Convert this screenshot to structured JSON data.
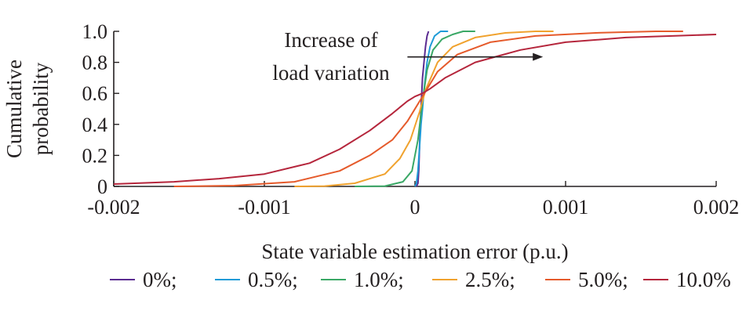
{
  "chart_data": {
    "type": "line",
    "title": "",
    "xlabel": "State variable estimation error (p.u.)",
    "ylabel_lines": [
      "Cumulative",
      "probability"
    ],
    "xlim": [
      -0.002,
      0.002
    ],
    "ylim": [
      0,
      1.0
    ],
    "x_ticks": [
      -0.002,
      -0.001,
      0,
      0.001,
      0.002
    ],
    "x_tick_labels": [
      "-0.002",
      "-0.001",
      "0",
      "0.001",
      "0.002"
    ],
    "y_ticks": [
      0,
      0.2,
      0.4,
      0.6,
      0.8,
      1.0
    ],
    "y_tick_labels": [
      "0",
      "0.2",
      "0.4",
      "0.6",
      "0.8",
      "1.0"
    ],
    "grid": false,
    "legend_position": "bottom",
    "annotation": {
      "lines": [
        "Increase of",
        "load variation"
      ],
      "arrow_from": [
        -5e-05,
        0.835
      ],
      "arrow_to": [
        0.00085,
        0.835
      ]
    },
    "series": [
      {
        "name": "0%",
        "legend_label": "0%;",
        "color": "#5b2c91",
        "points": [
          [
            1e-05,
            0
          ],
          [
            2e-05,
            0.02
          ],
          [
            2.5e-05,
            0.1
          ],
          [
            3e-05,
            0.25
          ],
          [
            3.5e-05,
            0.4
          ],
          [
            4e-05,
            0.5
          ],
          [
            4.5e-05,
            0.6
          ],
          [
            5e-05,
            0.7
          ],
          [
            6e-05,
            0.8
          ],
          [
            7e-05,
            0.9
          ],
          [
            8e-05,
            0.97
          ],
          [
            9e-05,
            1.0
          ]
        ]
      },
      {
        "name": "0.5%",
        "legend_label": "0.5%;",
        "color": "#1f9bd7",
        "points": [
          [
            0,
            0
          ],
          [
            1e-05,
            0.02
          ],
          [
            2e-05,
            0.1
          ],
          [
            3e-05,
            0.25
          ],
          [
            4e-05,
            0.4
          ],
          [
            5e-05,
            0.5
          ],
          [
            6e-05,
            0.62
          ],
          [
            8e-05,
            0.8
          ],
          [
            0.0001,
            0.9
          ],
          [
            0.00013,
            0.97
          ],
          [
            0.00017,
            1.0
          ],
          [
            0.00022,
            1.0
          ]
        ]
      },
      {
        "name": "1.0%",
        "legend_label": "1.0%;",
        "color": "#3aa866",
        "points": [
          [
            -0.0004,
            0
          ],
          [
            -0.0002,
            0.002
          ],
          [
            -8e-05,
            0.03
          ],
          [
            -2e-05,
            0.1
          ],
          [
            2e-05,
            0.3
          ],
          [
            5e-05,
            0.55
          ],
          [
            8e-05,
            0.75
          ],
          [
            0.00012,
            0.88
          ],
          [
            0.00018,
            0.95
          ],
          [
            0.00025,
            0.98
          ],
          [
            0.00032,
            1.0
          ],
          [
            0.0004,
            1.0
          ]
        ]
      },
      {
        "name": "2.5%",
        "legend_label": "2.5%;",
        "color": "#f0a22e",
        "points": [
          [
            -0.0008,
            0
          ],
          [
            -0.0006,
            0.002
          ],
          [
            -0.0004,
            0.02
          ],
          [
            -0.0002,
            0.08
          ],
          [
            -0.0001,
            0.18
          ],
          [
            -3e-05,
            0.3
          ],
          [
            3e-05,
            0.48
          ],
          [
            7e-05,
            0.62
          ],
          [
            0.00015,
            0.8
          ],
          [
            0.00025,
            0.9
          ],
          [
            0.0004,
            0.96
          ],
          [
            0.0006,
            0.99
          ],
          [
            0.0008,
            1.0
          ],
          [
            0.00092,
            1.0
          ]
        ]
      },
      {
        "name": "5.0%",
        "legend_label": "5.0%;",
        "color": "#e55a2b",
        "points": [
          [
            -0.0016,
            0
          ],
          [
            -0.0012,
            0.005
          ],
          [
            -0.0008,
            0.03
          ],
          [
            -0.0005,
            0.1
          ],
          [
            -0.0003,
            0.2
          ],
          [
            -0.00015,
            0.3
          ],
          [
            -5e-05,
            0.42
          ],
          [
            5e-05,
            0.58
          ],
          [
            0.00015,
            0.74
          ],
          [
            0.00028,
            0.85
          ],
          [
            0.0005,
            0.93
          ],
          [
            0.0008,
            0.97
          ],
          [
            0.0012,
            0.99
          ],
          [
            0.0016,
            1.0
          ],
          [
            0.00178,
            1.0
          ]
        ]
      },
      {
        "name": "10.0%",
        "legend_label": "10.0%",
        "color": "#b5263c",
        "points": [
          [
            -0.002,
            0.015
          ],
          [
            -0.0016,
            0.03
          ],
          [
            -0.0013,
            0.05
          ],
          [
            -0.001,
            0.08
          ],
          [
            -0.0007,
            0.15
          ],
          [
            -0.0005,
            0.24
          ],
          [
            -0.0003,
            0.36
          ],
          [
            -0.00015,
            0.47
          ],
          [
            -5e-05,
            0.55
          ],
          [
            0.0,
            0.58
          ],
          [
            5e-05,
            0.6
          ],
          [
            0.0001,
            0.63
          ],
          [
            0.0002,
            0.7
          ],
          [
            0.0004,
            0.8
          ],
          [
            0.0007,
            0.88
          ],
          [
            0.001,
            0.93
          ],
          [
            0.0014,
            0.96
          ],
          [
            0.002,
            0.98
          ]
        ]
      }
    ]
  }
}
